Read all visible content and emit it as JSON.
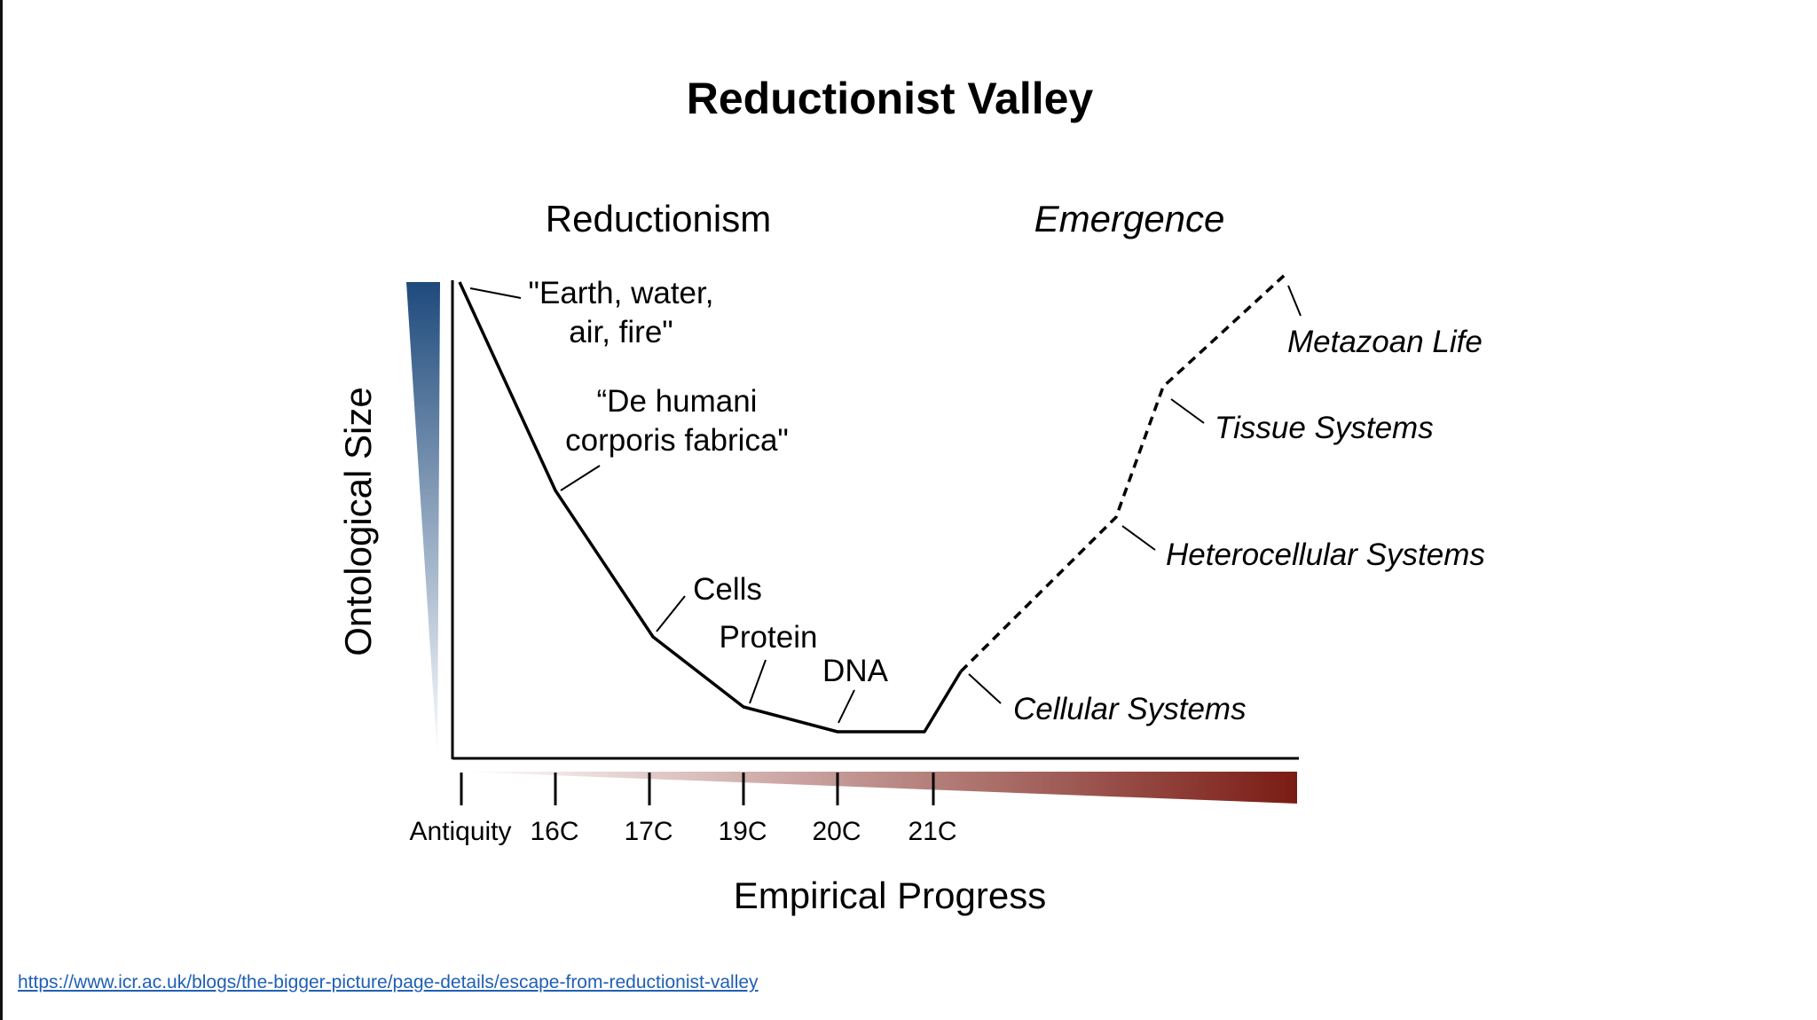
{
  "title": "Reductionist Valley",
  "headings": {
    "left": "Reductionism",
    "right": "Emergence"
  },
  "axes": {
    "y_label": "Ontological Size",
    "x_label": "Empirical Progress",
    "x_ticks": [
      "Antiquity",
      "16C",
      "17C",
      "19C",
      "20C",
      "21C"
    ]
  },
  "reduction_labels": {
    "earth_line1": "\"Earth, water,",
    "earth_line2": "air, fire\"",
    "fabrica_line1": "“De humani",
    "fabrica_line2": "corporis fabrica\"",
    "cells": "Cells",
    "protein": "Protein",
    "dna": "DNA"
  },
  "emergence_labels": {
    "cellular": "Cellular Systems",
    "heterocellular": "Heterocellular Systems",
    "tissue": "Tissue Systems",
    "metazoan": "Metazoan Life"
  },
  "colors": {
    "y_gradient_top": "#1e4a7c",
    "y_gradient_bottom": "#ffffff",
    "x_gradient_start": "#ffffff",
    "x_gradient_end": "#7a1c14",
    "link": "#1f5fb5"
  },
  "source_url": "https://www.icr.ac.uk/blogs/the-bigger-picture/page-details/escape-from-reductionist-valley"
}
